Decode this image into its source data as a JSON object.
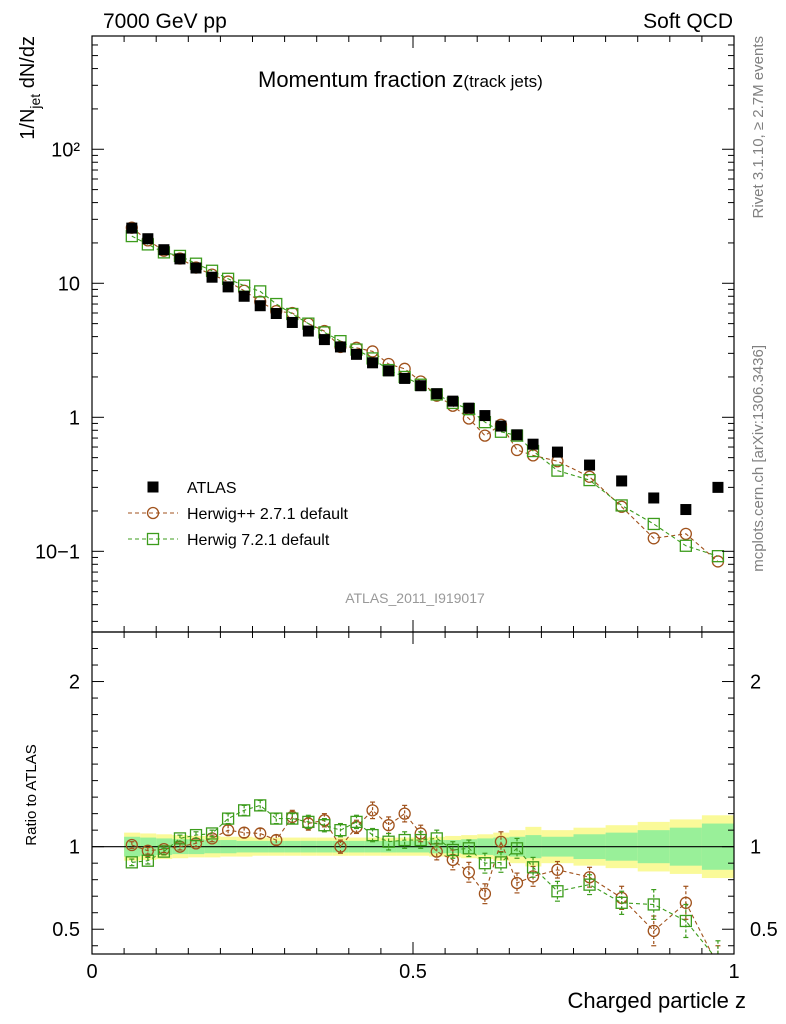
{
  "header": {
    "left": "7000 GeV pp",
    "right": "Soft QCD"
  },
  "side_labels": {
    "top": "Rivet 3.1.10, ≥ 2.7M events",
    "bottom": "mcplots.cern.ch [arXiv:1306.3436]"
  },
  "chart_data": [
    {
      "type": "scatter",
      "title": "Momentum fraction z",
      "title_sub": "(track jets)",
      "ylabel": "1/N_jet dN/dz",
      "ylabel_main": "1/N",
      "ylabel_sub": "jet",
      "ylabel_tail": " dN/dz",
      "xlabel": "",
      "yscale": "log",
      "ylim": [
        0.025,
        700
      ],
      "xlim": [
        0,
        1
      ],
      "y_tick_labels": [
        "10−1",
        "1",
        "10",
        "10²"
      ],
      "watermark": "ATLAS_2011_I919017",
      "legend_position": "lower-left",
      "x": [
        0.062,
        0.087,
        0.112,
        0.137,
        0.162,
        0.187,
        0.212,
        0.237,
        0.262,
        0.287,
        0.312,
        0.337,
        0.362,
        0.387,
        0.412,
        0.437,
        0.462,
        0.487,
        0.512,
        0.537,
        0.562,
        0.587,
        0.612,
        0.637,
        0.662,
        0.687,
        0.725,
        0.775,
        0.825,
        0.875,
        0.925,
        0.975
      ],
      "series": [
        {
          "name": "ATLAS",
          "color": "#000000",
          "marker": "filled-square",
          "values": [
            25.8,
            21.5,
            17.8,
            15.2,
            13.0,
            11.1,
            9.4,
            8.0,
            6.8,
            5.95,
            5.1,
            4.4,
            3.8,
            3.35,
            2.95,
            2.55,
            2.22,
            1.95,
            1.72,
            1.5,
            1.32,
            1.17,
            1.03,
            0.86,
            0.74,
            0.63,
            0.55,
            0.44,
            0.335,
            0.25,
            0.205,
            0.3
          ]
        },
        {
          "name": "Herwig++ 2.7.1 default",
          "color": "#a0521c",
          "marker": "open-circle",
          "values": [
            26.0,
            20.9,
            17.5,
            15.3,
            13.1,
            11.6,
            10.3,
            8.8,
            7.3,
            6.2,
            6.0,
            5.0,
            4.4,
            3.35,
            3.3,
            3.1,
            2.5,
            2.3,
            1.85,
            1.45,
            1.22,
            0.98,
            0.73,
            0.88,
            0.57,
            0.52,
            0.47,
            0.36,
            0.215,
            0.125,
            0.135,
            0.084
          ]
        },
        {
          "name": "Herwig 7.2.1 default",
          "color": "#3c9c1c",
          "marker": "open-square",
          "values": [
            22.5,
            19.5,
            17.0,
            16.0,
            14.0,
            12.4,
            10.8,
            9.6,
            8.7,
            7.0,
            5.9,
            5.0,
            4.3,
            3.7,
            3.2,
            2.75,
            2.25,
            2.0,
            1.75,
            1.48,
            1.28,
            1.15,
            0.92,
            0.78,
            0.73,
            0.56,
            0.4,
            0.34,
            0.22,
            0.16,
            0.11,
            0.092
          ]
        }
      ]
    },
    {
      "type": "scatter",
      "title": "",
      "ylabel": "Ratio to ATLAS",
      "xlabel": "Charged particle z",
      "ylim": [
        0.35,
        2.3
      ],
      "xlim": [
        0,
        1
      ],
      "x_tick_labels": [
        "0",
        "0.5",
        "1"
      ],
      "y_tick_labels": [
        "0.5",
        "1",
        "2"
      ],
      "reference_line": 1.0,
      "band_colors": {
        "inner": "#99f099",
        "outer": "#fafa99"
      },
      "band_x": [
        0.05,
        0.075,
        0.1,
        0.125,
        0.15,
        0.175,
        0.2,
        0.225,
        0.25,
        0.275,
        0.3,
        0.325,
        0.35,
        0.375,
        0.4,
        0.425,
        0.45,
        0.475,
        0.5,
        0.525,
        0.55,
        0.575,
        0.6,
        0.625,
        0.65,
        0.675,
        0.7,
        0.75,
        0.8,
        0.85,
        0.9,
        0.95,
        1.0
      ],
      "band_inner": [
        0.06,
        0.055,
        0.05,
        0.045,
        0.045,
        0.04,
        0.04,
        0.035,
        0.035,
        0.035,
        0.035,
        0.035,
        0.035,
        0.035,
        0.035,
        0.035,
        0.035,
        0.035,
        0.035,
        0.04,
        0.04,
        0.045,
        0.05,
        0.055,
        0.06,
        0.07,
        0.06,
        0.075,
        0.085,
        0.1,
        0.115,
        0.14
      ],
      "band_outer": [
        0.085,
        0.08,
        0.075,
        0.07,
        0.065,
        0.065,
        0.06,
        0.06,
        0.055,
        0.055,
        0.055,
        0.055,
        0.055,
        0.055,
        0.055,
        0.055,
        0.055,
        0.055,
        0.055,
        0.06,
        0.065,
        0.07,
        0.075,
        0.085,
        0.1,
        0.12,
        0.1,
        0.115,
        0.13,
        0.15,
        0.165,
        0.19
      ],
      "x": [
        0.062,
        0.087,
        0.112,
        0.137,
        0.162,
        0.187,
        0.212,
        0.237,
        0.262,
        0.287,
        0.312,
        0.337,
        0.362,
        0.387,
        0.412,
        0.437,
        0.462,
        0.487,
        0.512,
        0.537,
        0.562,
        0.587,
        0.612,
        0.637,
        0.662,
        0.687,
        0.725,
        0.775,
        0.825,
        0.875,
        0.925,
        0.975
      ],
      "series": [
        {
          "name": "Herwig++ 2.7.1 default",
          "color": "#a0521c",
          "marker": "open-circle",
          "values": [
            1.01,
            0.975,
            0.985,
            1.0,
            1.02,
            1.05,
            1.1,
            1.085,
            1.08,
            1.04,
            1.18,
            1.14,
            1.16,
            1.0,
            1.12,
            1.22,
            1.13,
            1.2,
            1.08,
            0.97,
            0.92,
            0.845,
            0.715,
            1.03,
            0.78,
            0.82,
            0.86,
            0.815,
            0.69,
            0.49,
            0.66,
            0.28
          ],
          "errors": [
            0.02,
            0.02,
            0.02,
            0.02,
            0.02,
            0.02,
            0.03,
            0.03,
            0.03,
            0.03,
            0.04,
            0.04,
            0.04,
            0.04,
            0.04,
            0.05,
            0.05,
            0.05,
            0.05,
            0.05,
            0.06,
            0.06,
            0.06,
            0.06,
            0.06,
            0.06,
            0.05,
            0.06,
            0.07,
            0.09,
            0.1,
            0.12
          ]
        },
        {
          "name": "Herwig 7.2.1 default",
          "color": "#3c9c1c",
          "marker": "open-square",
          "values": [
            0.905,
            0.915,
            0.97,
            1.05,
            1.07,
            1.08,
            1.17,
            1.22,
            1.25,
            1.17,
            1.17,
            1.15,
            1.13,
            1.1,
            1.15,
            1.07,
            1.03,
            1.04,
            1.04,
            1.05,
            0.98,
            0.99,
            0.9,
            0.905,
            0.99,
            0.875,
            0.73,
            0.77,
            0.66,
            0.65,
            0.55,
            0.31
          ],
          "errors": [
            0.02,
            0.02,
            0.02,
            0.02,
            0.02,
            0.02,
            0.03,
            0.03,
            0.03,
            0.03,
            0.03,
            0.04,
            0.04,
            0.04,
            0.04,
            0.04,
            0.05,
            0.05,
            0.05,
            0.05,
            0.05,
            0.05,
            0.06,
            0.06,
            0.06,
            0.06,
            0.06,
            0.06,
            0.07,
            0.09,
            0.1,
            0.12
          ]
        }
      ]
    }
  ]
}
